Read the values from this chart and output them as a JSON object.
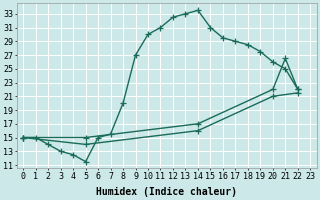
{
  "xlabel": "Humidex (Indice chaleur)",
  "background_color": "#cce8e8",
  "grid_color": "#ffffff",
  "line_color": "#1a6b5a",
  "xlim": [
    -0.5,
    23.5
  ],
  "ylim": [
    10.5,
    34.5
  ],
  "xticks": [
    0,
    1,
    2,
    3,
    4,
    5,
    6,
    7,
    8,
    9,
    10,
    11,
    12,
    13,
    14,
    15,
    16,
    17,
    18,
    19,
    20,
    21,
    22,
    23
  ],
  "yticks": [
    11,
    13,
    15,
    17,
    19,
    21,
    23,
    25,
    27,
    29,
    31,
    33
  ],
  "line1_x": [
    0,
    1,
    2,
    3,
    4,
    5,
    6,
    7,
    8,
    9,
    10,
    11,
    12,
    13,
    14,
    15,
    16,
    17,
    18,
    19,
    20,
    21,
    22
  ],
  "line1_y": [
    15,
    15,
    14,
    13,
    12.5,
    11.5,
    15,
    15.5,
    20,
    27,
    30,
    31,
    32.5,
    33,
    33.5,
    31,
    29.5,
    29,
    28.5,
    27.5,
    26,
    25,
    22
  ],
  "line2_x": [
    0,
    5,
    14,
    20,
    21,
    22
  ],
  "line2_y": [
    15,
    15,
    17,
    22,
    26.5,
    22
  ],
  "line3_x": [
    0,
    5,
    14,
    20,
    22
  ],
  "line3_y": [
    15,
    14,
    16,
    21,
    21.5
  ],
  "marker": "+",
  "markersize": 4,
  "linewidth": 1.0,
  "label_fontsize": 7,
  "tick_fontsize": 6
}
